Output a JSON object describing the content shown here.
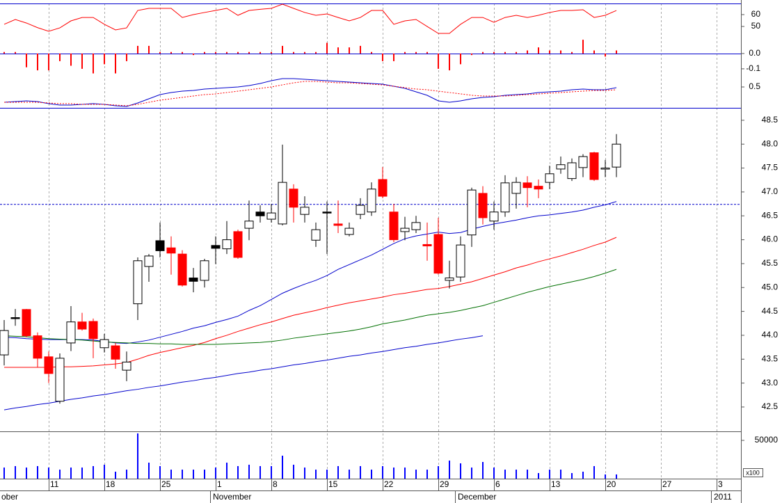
{
  "chart_data": [
    {
      "type": "line",
      "series": [
        {
          "color": "#ff0000",
          "values": [
            51.8,
            55.9,
            52.9,
            49,
            45.9,
            48.8,
            54.7,
            57.6,
            57.6,
            51.8,
            47.1,
            48.8,
            63.5,
            65.3,
            65.3,
            65.3,
            57.6,
            60,
            61.8,
            63.5,
            65.3,
            59.4,
            63.5,
            64.5,
            65.3,
            68.8,
            65.3,
            61.8,
            59.4,
            60.6,
            57.6,
            54.7,
            57.6,
            63.5,
            63.5,
            51.8,
            54.7,
            55.9,
            50,
            44.1,
            44.1,
            51.8,
            57.6,
            57.6,
            53.5,
            57.6,
            59.4,
            57.6,
            59.4,
            61.8,
            63.5,
            63.5,
            64.1,
            57.6,
            59.4,
            63.5
          ]
        }
      ],
      "ylim": [
        27.1,
        69.4
      ],
      "yticks": [
        50,
        60
      ]
    },
    {
      "type": "bar",
      "color": "#ff0000",
      "values": [
        0.01,
        0.01,
        -0.09,
        -0.11,
        -0.11,
        -0.05,
        -0.08,
        -0.1,
        -0.13,
        -0.07,
        -0.13,
        -0.05,
        0.05,
        0.05,
        0.01,
        0.01,
        0.01,
        -0.01,
        0.01,
        0.01,
        0.01,
        0.01,
        0.01,
        0.01,
        0.01,
        0.05,
        0.01,
        0.01,
        0.01,
        0.07,
        0.04,
        0.04,
        0.05,
        0.01,
        -0.05,
        -0.05,
        0.01,
        0.01,
        0.01,
        -0.1,
        -0.11,
        -0.07,
        -0.01,
        0.01,
        0.01,
        0.01,
        0.01,
        0.02,
        0.04,
        0.02,
        0.02,
        0.01,
        0.09,
        0.02,
        -0.02,
        0.02
      ],
      "ylim": [
        -0.355,
        0.327
      ],
      "yticks": [
        {
          "value": 0,
          "label": "0.0"
        },
        -0.1
      ]
    },
    {
      "type": "line",
      "series": [
        {
          "color": "#0000cc",
          "values": [
            0.28,
            0.29,
            0.3,
            0.29,
            0.26,
            0.24,
            0.24,
            0.25,
            0.26,
            0.25,
            0.23,
            0.22,
            0.27,
            0.33,
            0.39,
            0.42,
            0.44,
            0.45,
            0.47,
            0.48,
            0.49,
            0.5,
            0.52,
            0.55,
            0.59,
            0.62,
            0.62,
            0.61,
            0.6,
            0.59,
            0.58,
            0.57,
            0.56,
            0.55,
            0.54,
            0.51,
            0.48,
            0.43,
            0.38,
            0.3,
            0.28,
            0.3,
            0.33,
            0.35,
            0.36,
            0.38,
            0.39,
            0.4,
            0.42,
            0.43,
            0.44,
            0.46,
            0.47,
            0.46,
            0.46,
            0.49
          ]
        },
        {
          "color": "#ff0000",
          "dash": true,
          "values": [
            0.28,
            0.28,
            0.28,
            0.28,
            0.27,
            0.26,
            0.26,
            0.25,
            0.25,
            0.25,
            0.24,
            0.23,
            0.25,
            0.28,
            0.31,
            0.33,
            0.35,
            0.37,
            0.39,
            0.4,
            0.42,
            0.44,
            0.46,
            0.48,
            0.5,
            0.53,
            0.56,
            0.58,
            0.58,
            0.57,
            0.56,
            0.56,
            0.55,
            0.54,
            0.53,
            0.51,
            0.49,
            0.47,
            0.46,
            0.44,
            0.42,
            0.4,
            0.38,
            0.37,
            0.37,
            0.37,
            0.38,
            0.39,
            0.4,
            0.41,
            0.42,
            0.43,
            0.44,
            0.45,
            0.45,
            0.46
          ]
        }
      ],
      "ylim": [
        0.2,
        0.98
      ],
      "yticks": [
        0.5
      ]
    },
    {
      "type": "candlestick",
      "open": [
        43.59,
        44.37,
        44.54,
        43.99,
        43.55,
        42.62,
        43.84,
        44.28,
        44.29,
        43.74,
        43.78,
        43.27,
        44.66,
        45.44,
        45.77,
        45.83,
        45.7,
        45.13,
        45.15,
        45.82,
        45.81,
        46.17,
        46.24,
        46.5,
        46.43,
        46.33,
        47.06,
        46.53,
        45.99,
        46.58,
        46.33,
        46.11,
        46.53,
        46.58,
        47.26,
        46.58,
        46.17,
        46.21,
        45.9,
        46.11,
        45.15,
        45.22,
        46.1,
        46.97,
        46.39,
        46.58,
        46.97,
        47.19,
        47.12,
        47.2,
        47.48,
        47.28,
        47.51,
        47.82,
        47.48,
        47.52
      ],
      "high": [
        44.32,
        44.55,
        44.55,
        44.06,
        43.66,
        43.62,
        44.61,
        44.47,
        44.35,
        44.03,
        43.84,
        43.66,
        45.63,
        45.7,
        46.36,
        46.07,
        45.78,
        45.41,
        45.6,
        46.07,
        46.39,
        46.21,
        46.82,
        46.72,
        46.75,
        47.99,
        47.16,
        46.91,
        46.36,
        46.8,
        46.82,
        46.36,
        46.87,
        47.2,
        47.52,
        46.75,
        46.48,
        46.5,
        46.36,
        46.46,
        45.56,
        46.07,
        47.09,
        47.12,
        46.8,
        47.35,
        47.31,
        47.33,
        47.26,
        47.55,
        47.74,
        47.7,
        47.79,
        47.84,
        47.67,
        48.21
      ],
      "low": [
        43.37,
        44.2,
        43.96,
        43.33,
        43.0,
        42.57,
        43.67,
        44.1,
        43.52,
        43.64,
        43.3,
        43.04,
        44.32,
        45.12,
        45.63,
        45.27,
        45.02,
        44.9,
        45.0,
        45.49,
        45.7,
        45.6,
        45.99,
        46.36,
        46.36,
        46.3,
        46.36,
        46.36,
        45.85,
        45.7,
        46.14,
        46.07,
        46.43,
        46.5,
        46.87,
        45.95,
        45.99,
        46.14,
        45.56,
        45.27,
        44.98,
        45.12,
        45.85,
        46.32,
        46.21,
        46.48,
        46.65,
        46.68,
        46.87,
        47.06,
        47.38,
        47.23,
        47.31,
        47.23,
        47.31,
        47.31
      ],
      "close": [
        44.1,
        44.37,
        43.99,
        43.52,
        43.2,
        43.52,
        44.28,
        44.13,
        43.93,
        43.91,
        43.5,
        43.44,
        45.56,
        45.66,
        45.98,
        45.72,
        45.05,
        45.2,
        45.56,
        45.88,
        46.0,
        45.63,
        46.39,
        46.58,
        46.56,
        47.2,
        46.68,
        46.68,
        46.21,
        46.58,
        46.3,
        46.24,
        46.72,
        47.06,
        46.91,
        46.0,
        46.24,
        46.36,
        45.87,
        45.3,
        45.2,
        45.89,
        47.04,
        46.46,
        46.58,
        47.19,
        47.2,
        47.09,
        47.06,
        47.38,
        47.57,
        47.61,
        47.74,
        47.26,
        47.5,
        48.0
      ],
      "colors": [
        "#ffffff",
        "#000000",
        "#ff0000",
        "#ff0000",
        "#ff0000",
        "#ffffff",
        "#ffffff",
        "#ff0000",
        "#ff0000",
        "#ffffff",
        "#ff0000",
        "#ffffff",
        "#ffffff",
        "#ffffff",
        "#000000",
        "#ff0000",
        "#ff0000",
        "#000000",
        "#ffffff",
        "#000000",
        "#ffffff",
        "#ff0000",
        "#ffffff",
        "#000000",
        "#ffffff",
        "#ffffff",
        "#ff0000",
        "#ffffff",
        "#ffffff",
        "#000000",
        "#ff0000",
        "#ffffff",
        "#ffffff",
        "#ffffff",
        "#ff0000",
        "#ff0000",
        "#ffffff",
        "#ffffff",
        "#ff0000",
        "#ff0000",
        "#ffffff",
        "#ffffff",
        "#ffffff",
        "#ff0000",
        "#ffffff",
        "#ffffff",
        "#ffffff",
        "#ff0000",
        "#ff0000",
        "#ffffff",
        "#ffffff",
        "#ffffff",
        "#ffffff",
        "#ff0000",
        "#ffffff",
        "#ffffff"
      ],
      "series": [
        {
          "color": "#0000cc",
          "values": [
            43.96,
            43.95,
            43.93,
            43.92,
            43.91,
            43.91,
            43.91,
            43.91,
            43.9,
            43.87,
            43.84,
            43.83,
            43.86,
            43.9,
            43.96,
            44.02,
            44.08,
            44.15,
            44.2,
            44.27,
            44.33,
            44.4,
            44.52,
            44.62,
            44.75,
            44.88,
            44.98,
            45.07,
            45.15,
            45.25,
            45.38,
            45.48,
            45.58,
            45.68,
            45.8,
            45.92,
            46.02,
            46.08,
            46.12,
            46.16,
            46.13,
            46.15,
            46.22,
            46.28,
            46.33,
            46.37,
            46.41,
            46.46,
            46.5,
            46.52,
            46.55,
            46.58,
            46.62,
            46.68,
            46.73,
            46.8
          ]
        },
        {
          "color": "#ff0000",
          "values": [
            43.33,
            43.33,
            43.33,
            43.33,
            43.33,
            43.34,
            43.34,
            43.35,
            43.36,
            43.38,
            43.4,
            43.43,
            43.5,
            43.58,
            43.64,
            43.69,
            43.74,
            43.79,
            43.85,
            43.93,
            44.0,
            44.08,
            44.15,
            44.22,
            44.28,
            44.35,
            44.42,
            44.47,
            44.52,
            44.58,
            44.63,
            44.68,
            44.72,
            44.76,
            44.8,
            44.85,
            44.88,
            44.92,
            44.96,
            44.98,
            45.02,
            45.07,
            45.12,
            45.19,
            45.26,
            45.33,
            45.41,
            45.47,
            45.54,
            45.6,
            45.66,
            45.73,
            45.8,
            45.88,
            45.95,
            46.05
          ]
        },
        {
          "color": "#007000",
          "values": [
            43.99,
            43.98,
            43.97,
            43.95,
            43.93,
            43.92,
            43.91,
            43.9,
            43.88,
            43.86,
            43.85,
            43.84,
            43.83,
            43.83,
            43.82,
            43.82,
            43.81,
            43.81,
            43.81,
            43.81,
            43.82,
            43.83,
            43.84,
            43.85,
            43.87,
            43.9,
            43.94,
            43.97,
            44.0,
            44.03,
            44.06,
            44.09,
            44.13,
            44.18,
            44.24,
            44.28,
            44.32,
            44.37,
            44.42,
            44.45,
            44.48,
            44.52,
            44.57,
            44.62,
            44.69,
            44.76,
            44.83,
            44.9,
            44.96,
            45.02,
            45.07,
            45.12,
            45.17,
            45.23,
            45.3,
            45.38
          ]
        },
        {
          "color": "#0000cc",
          "values": [
            42.44,
            42.48,
            42.51,
            42.55,
            42.58,
            42.62,
            42.66,
            42.69,
            42.73,
            42.76,
            42.8,
            42.84,
            42.87,
            42.91,
            42.94,
            42.98,
            43.02,
            43.05,
            43.09,
            43.12,
            43.16,
            43.2,
            43.23,
            43.27,
            43.3,
            43.34,
            43.38,
            43.41,
            43.45,
            43.48,
            43.52,
            43.56,
            43.59,
            43.63,
            43.66,
            43.7,
            43.74,
            43.77,
            43.81,
            43.84,
            43.88,
            43.92,
            43.95,
            43.99,
            null,
            null,
            null,
            null,
            null,
            null,
            null,
            null,
            null,
            null,
            null,
            null
          ]
        }
      ],
      "hline": {
        "value": 46.74,
        "color": "#0000cc"
      },
      "ylim": [
        41.99,
        48.76
      ],
      "yticks": [
        42.5,
        {
          "value": 43,
          "label": "43.0"
        },
        43.5,
        {
          "value": 44,
          "label": "44.0"
        },
        44.5,
        {
          "value": 45,
          "label": "45.0"
        },
        45.5,
        {
          "value": 46,
          "label": "46.0"
        },
        46.5,
        {
          "value": 47,
          "label": "47.0"
        },
        47.5,
        {
          "value": 48,
          "label": "48.0"
        },
        48.5
      ]
    },
    {
      "type": "bar",
      "color": "#0000ff",
      "categories": [
        null,
        null,
        null,
        null,
        "11",
        null,
        null,
        null,
        null,
        "18",
        null,
        null,
        null,
        null,
        "25",
        null,
        null,
        null,
        null,
        "1",
        null,
        null,
        null,
        null,
        "8",
        null,
        null,
        null,
        null,
        "15",
        null,
        null,
        null,
        null,
        "22",
        null,
        null,
        null,
        null,
        "29",
        null,
        null,
        null,
        null,
        "6",
        null,
        null,
        null,
        null,
        "13",
        null,
        null,
        null,
        null,
        "20",
        null,
        null,
        null,
        null,
        "27",
        null,
        null,
        null,
        null,
        "3",
        null
      ],
      "values": [
        14500,
        16400,
        14500,
        16400,
        14500,
        11800,
        14500,
        14500,
        16400,
        18200,
        9100,
        11800,
        59100,
        20900,
        16400,
        11800,
        11800,
        11800,
        11800,
        14500,
        20900,
        16400,
        18200,
        16400,
        16400,
        30000,
        18200,
        14500,
        11800,
        11800,
        16400,
        11800,
        16400,
        11800,
        16400,
        14500,
        14500,
        11800,
        11800,
        16400,
        23600,
        20000,
        14500,
        21800,
        14500,
        11800,
        11800,
        11800,
        7300,
        11800,
        11800,
        7300,
        9100,
        16400,
        5500,
        5500,
        null,
        null,
        null,
        null,
        null,
        null,
        null,
        null,
        null,
        null
      ],
      "months": [
        {
          "value": 0,
          "label": "ober"
        },
        {
          "value": 19,
          "label": "November"
        },
        {
          "value": 41,
          "label": "December"
        },
        {
          "value": 64,
          "label": "2011"
        }
      ],
      "unit_label": "x100",
      "ylim": [
        0,
        61800
      ],
      "yticks": [
        50000
      ]
    }
  ]
}
